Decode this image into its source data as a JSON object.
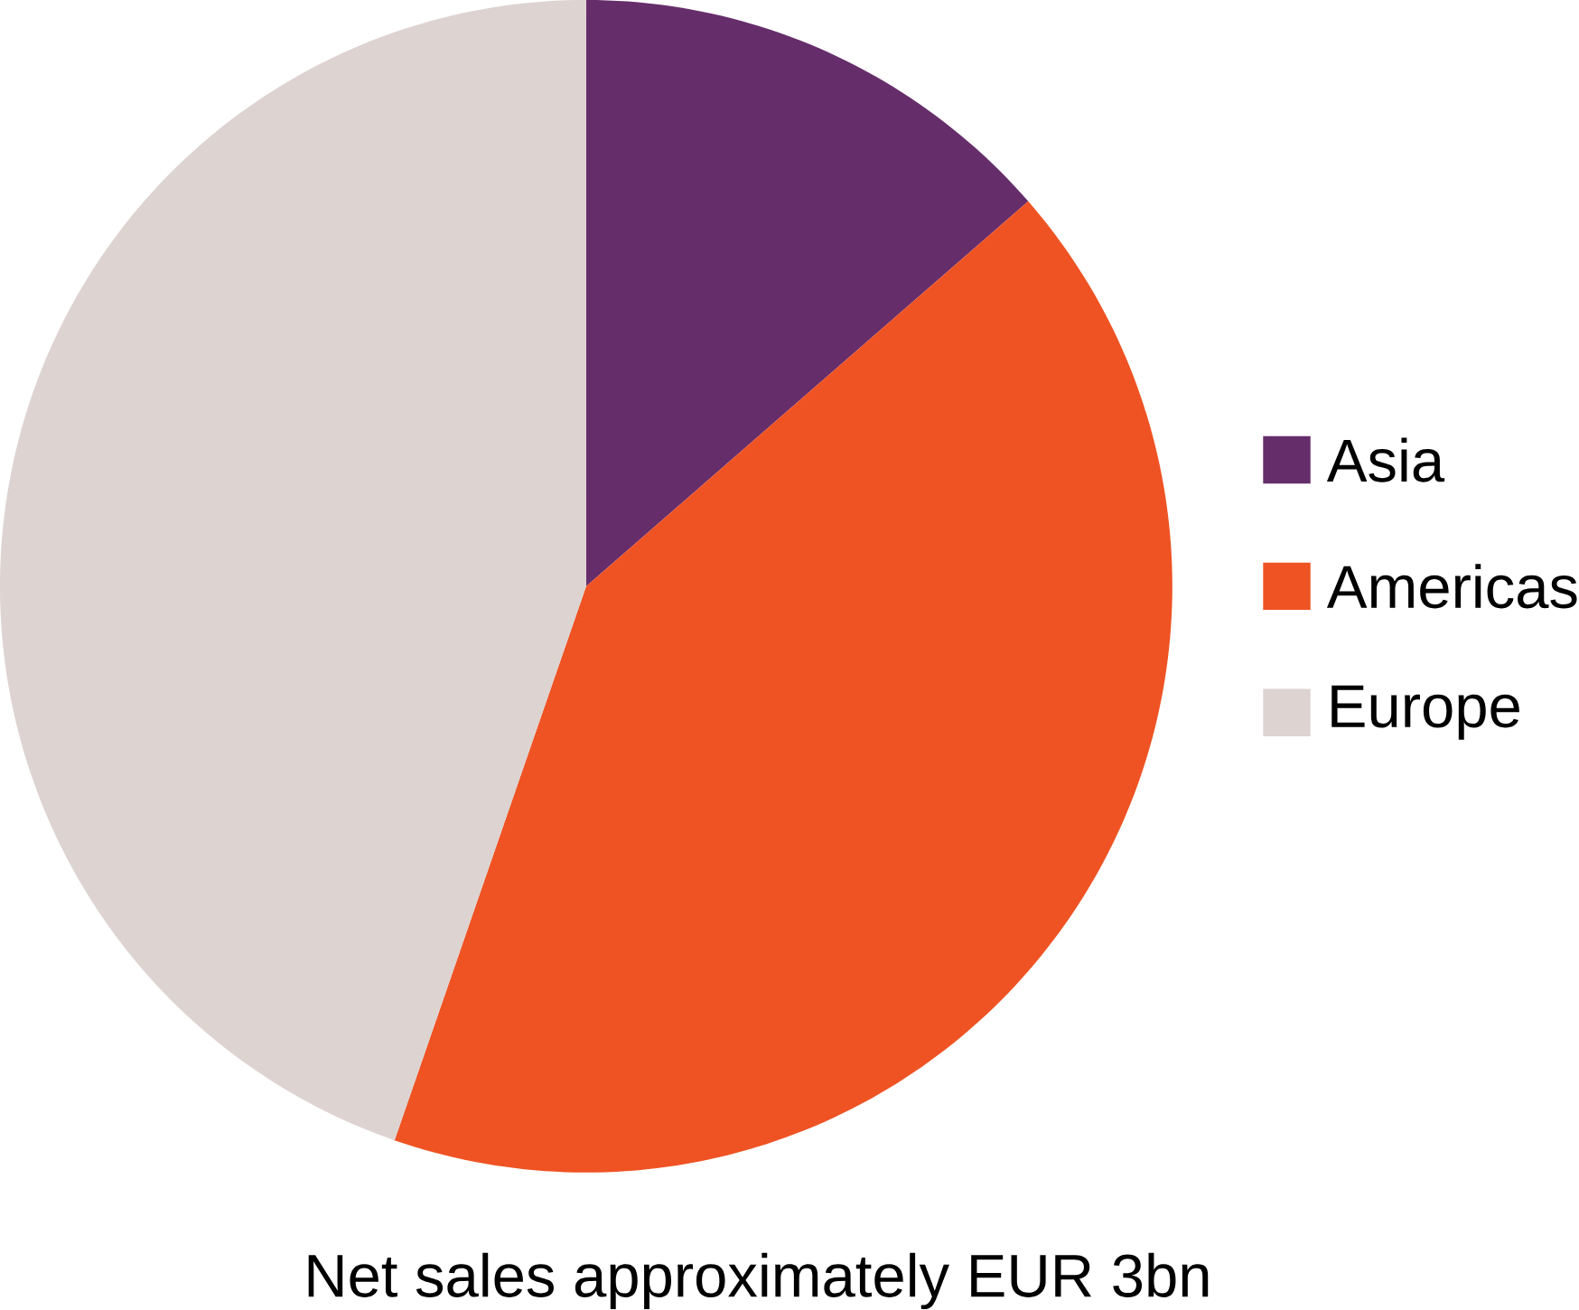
{
  "chart_data": {
    "type": "pie",
    "title": "Net sales approximately EUR 3bn",
    "categories": [
      "Asia",
      "Americas",
      "Europe"
    ],
    "values": [
      13.6,
      41.7,
      44.7
    ],
    "colors": [
      "#662d6b",
      "#ef5323",
      "#ddd3d1"
    ],
    "legend": "right"
  }
}
